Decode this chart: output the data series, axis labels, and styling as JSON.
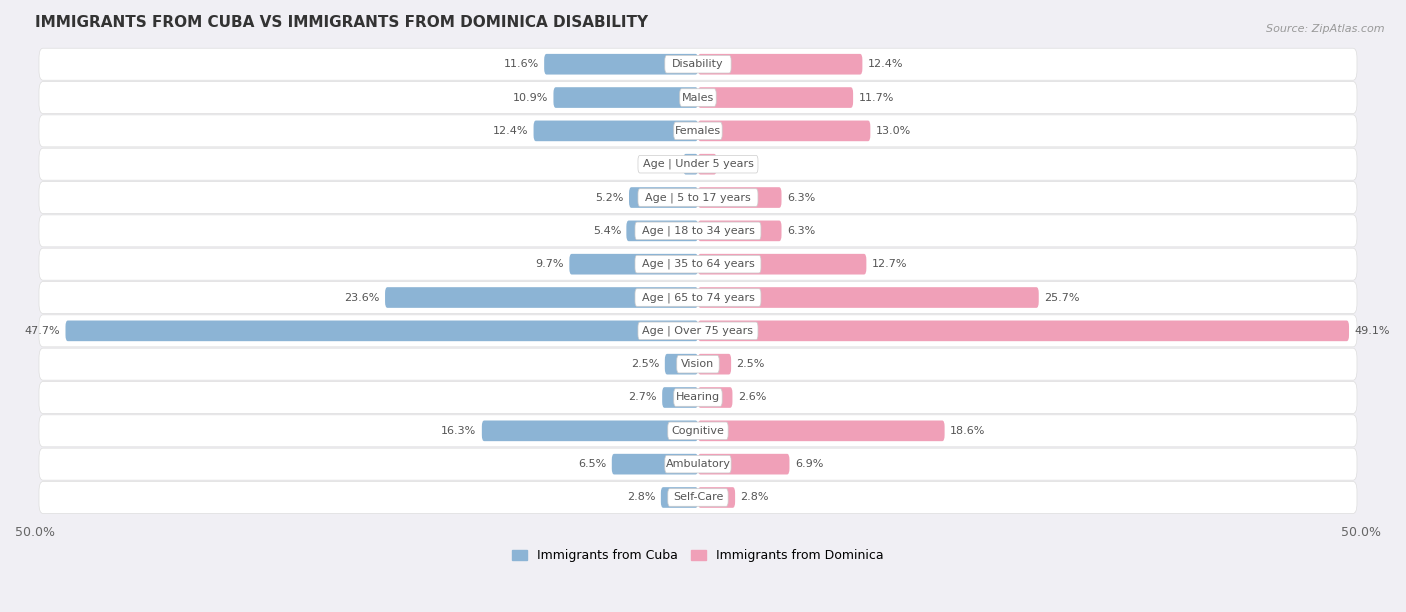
{
  "title": "IMMIGRANTS FROM CUBA VS IMMIGRANTS FROM DOMINICA DISABILITY",
  "source": "Source: ZipAtlas.com",
  "categories": [
    "Disability",
    "Males",
    "Females",
    "Age | Under 5 years",
    "Age | 5 to 17 years",
    "Age | 18 to 34 years",
    "Age | 35 to 64 years",
    "Age | 65 to 74 years",
    "Age | Over 75 years",
    "Vision",
    "Hearing",
    "Cognitive",
    "Ambulatory",
    "Self-Care"
  ],
  "cuba_values": [
    11.6,
    10.9,
    12.4,
    1.1,
    5.2,
    5.4,
    9.7,
    23.6,
    47.7,
    2.5,
    2.7,
    16.3,
    6.5,
    2.8
  ],
  "dominica_values": [
    12.4,
    11.7,
    13.0,
    1.4,
    6.3,
    6.3,
    12.7,
    25.7,
    49.1,
    2.5,
    2.6,
    18.6,
    6.9,
    2.8
  ],
  "cuba_color": "#8cb4d5",
  "dominica_color": "#f0a0b8",
  "axis_limit": 50.0,
  "background_color": "#f0eff4",
  "row_bg_color": "#ffffff",
  "row_alt_color": "#e8e8ee",
  "label_fontsize": 8.0,
  "value_fontsize": 8.0,
  "title_fontsize": 11,
  "legend_cuba": "Immigrants from Cuba",
  "legend_dominica": "Immigrants from Dominica"
}
